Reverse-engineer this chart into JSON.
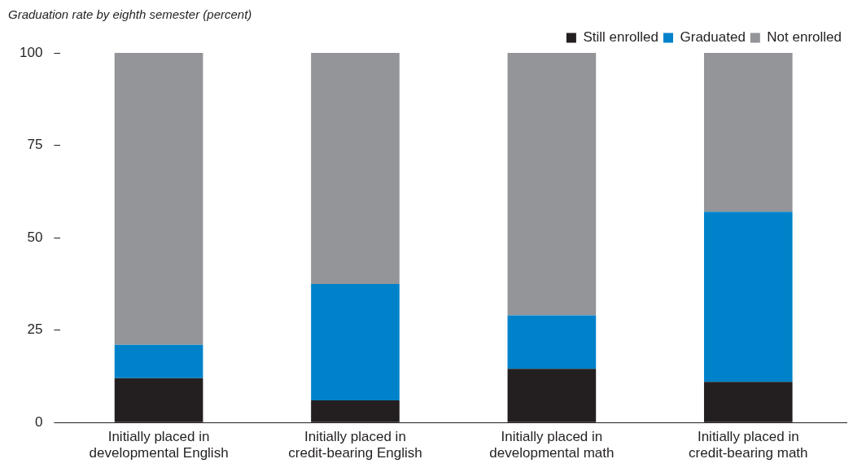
{
  "chart_data": {
    "type": "bar",
    "title": "Graduation rate by eighth semester (percent)",
    "stacked": true,
    "categories": [
      "Initially placed in\ndevelopmental English",
      "Initially placed in\ncredit-bearing English",
      "Initially placed in\ndevelopmental math",
      "Initially placed in\ncredit-bearing math"
    ],
    "series": [
      {
        "name": "Still enrolled",
        "color": "#231f20",
        "values": [
          12,
          6,
          14.5,
          11
        ]
      },
      {
        "name": "Graduated",
        "color": "#0082ca",
        "values": [
          9,
          31.5,
          14.5,
          46
        ]
      },
      {
        "name": "Not enrolled",
        "color": "#939598",
        "values": [
          79,
          62.5,
          71,
          43
        ]
      }
    ],
    "ylim": [
      0,
      100
    ],
    "yticks": [
      0,
      25,
      50,
      75,
      100
    ],
    "grid": false,
    "legend": "top right"
  }
}
